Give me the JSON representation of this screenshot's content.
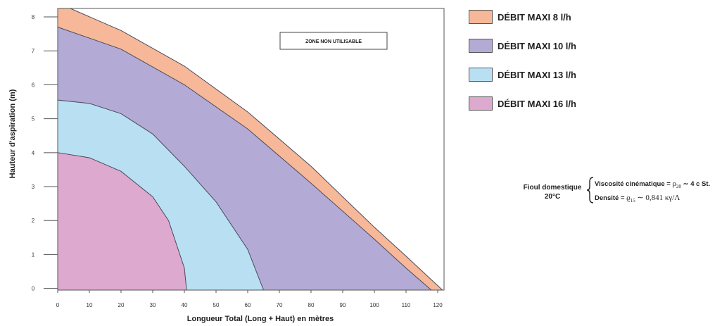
{
  "chart_data": {
    "type": "area",
    "title": "",
    "xlabel": "Longueur Total (Long + Haut) en mètres",
    "ylabel": "Hauteur d'aspiration (m)",
    "xlim": [
      0,
      122
    ],
    "ylim": [
      -0.05,
      8.25
    ],
    "x_ticks": [
      0,
      10,
      20,
      30,
      40,
      50,
      60,
      70,
      80,
      90,
      100,
      110,
      120
    ],
    "y_ticks": [
      0,
      1,
      2,
      3,
      4,
      5,
      6,
      7,
      8
    ],
    "grid": false,
    "legend_position": "right",
    "annotation": "ZONE NON UTILISABLE",
    "series": [
      {
        "name": "DÉBIT MAXI 8 l/h",
        "color": "#f6b898",
        "points": [
          [
            0,
            8.25
          ],
          [
            4,
            8.25
          ],
          [
            20,
            7.6
          ],
          [
            40,
            6.55
          ],
          [
            60,
            5.2
          ],
          [
            80,
            3.6
          ],
          [
            100,
            1.8
          ],
          [
            110,
            0.95
          ],
          [
            121.5,
            -0.05
          ]
        ]
      },
      {
        "name": "DÉBIT MAXI 10 l/h",
        "color": "#b3abd6",
        "points": [
          [
            0,
            7.7
          ],
          [
            20,
            7.05
          ],
          [
            40,
            6.0
          ],
          [
            60,
            4.7
          ],
          [
            80,
            3.1
          ],
          [
            100,
            1.45
          ],
          [
            110,
            0.6
          ],
          [
            118,
            -0.05
          ]
        ]
      },
      {
        "name": "DÉBIT MAXI 13 l/h",
        "color": "#b8e0f2",
        "points": [
          [
            0,
            5.55
          ],
          [
            10,
            5.45
          ],
          [
            20,
            5.15
          ],
          [
            30,
            4.55
          ],
          [
            40,
            3.6
          ],
          [
            50,
            2.55
          ],
          [
            60,
            1.15
          ],
          [
            65,
            -0.05
          ]
        ]
      },
      {
        "name": "DÉBIT MAXI 16 l/h",
        "color": "#dda9cf",
        "points": [
          [
            0,
            4.0
          ],
          [
            10,
            3.85
          ],
          [
            20,
            3.45
          ],
          [
            30,
            2.7
          ],
          [
            35,
            2.0
          ],
          [
            40,
            0.6
          ],
          [
            40.7,
            -0.05
          ]
        ]
      }
    ]
  },
  "fluid_info": {
    "name_line1": "Fioul domestique",
    "name_line2": "20°C",
    "viscosity_label": "Viscosité cinématique =",
    "viscosity_symbol": "ρ",
    "viscosity_sub": "20",
    "viscosity_value": "∼ 4 c St.",
    "density_label": "Densité =",
    "density_symbol": "ϱ",
    "density_sub": "15",
    "density_value": "∼ 0,841 κγ/Λ"
  }
}
